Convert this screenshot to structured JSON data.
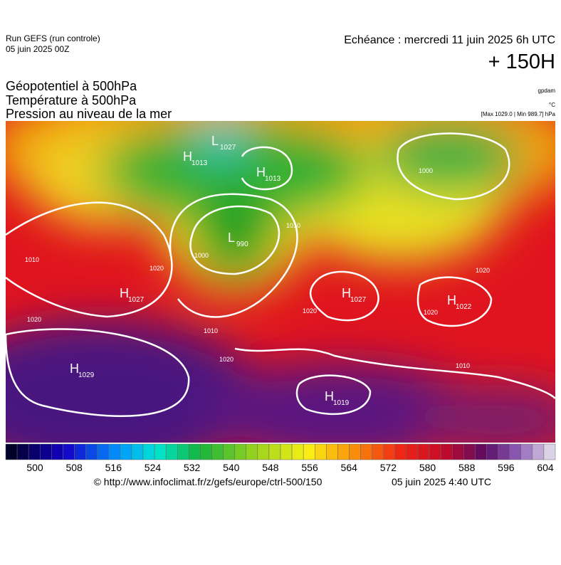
{
  "header": {
    "run": "Run GEFS (run controle)",
    "run_date": "05 juin 2025 00Z",
    "valid": "Echéance : mercredi 11 juin 2025 6h UTC",
    "lead": "+ 150H"
  },
  "titles": [
    "Géopotentiel à 500hPa",
    "Température à 500hPa",
    "Pression au niveau de la mer"
  ],
  "units": [
    "gpdam",
    "°C",
    "[Max 1029.0 | Min 989.7] hPa"
  ],
  "centers": [
    {
      "type": "L",
      "value": "1027"
    },
    {
      "type": "H",
      "value": "1013"
    },
    {
      "type": "H",
      "value": "1013"
    },
    {
      "type": "L",
      "value": "990"
    },
    {
      "type": "H",
      "value": "1027"
    },
    {
      "type": "H",
      "value": "1027"
    },
    {
      "type": "H",
      "value": "1022"
    },
    {
      "type": "H",
      "value": "1029"
    },
    {
      "type": "H",
      "value": "1019"
    }
  ],
  "isobar_labels": [
    "1010",
    "1020",
    "1010",
    "1020",
    "1000",
    "1020",
    "1010",
    "1020",
    "1000",
    "1020",
    "1020",
    "1010"
  ],
  "colorbar": {
    "labels": [
      500,
      508,
      516,
      524,
      532,
      540,
      548,
      556,
      564,
      572,
      580,
      588,
      596,
      604
    ]
  },
  "footer": {
    "url": "© http://www.infoclimat.fr/z/gefs/europe/ctrl-500/150",
    "generated": "05 juin 2025  4:40 UTC"
  }
}
